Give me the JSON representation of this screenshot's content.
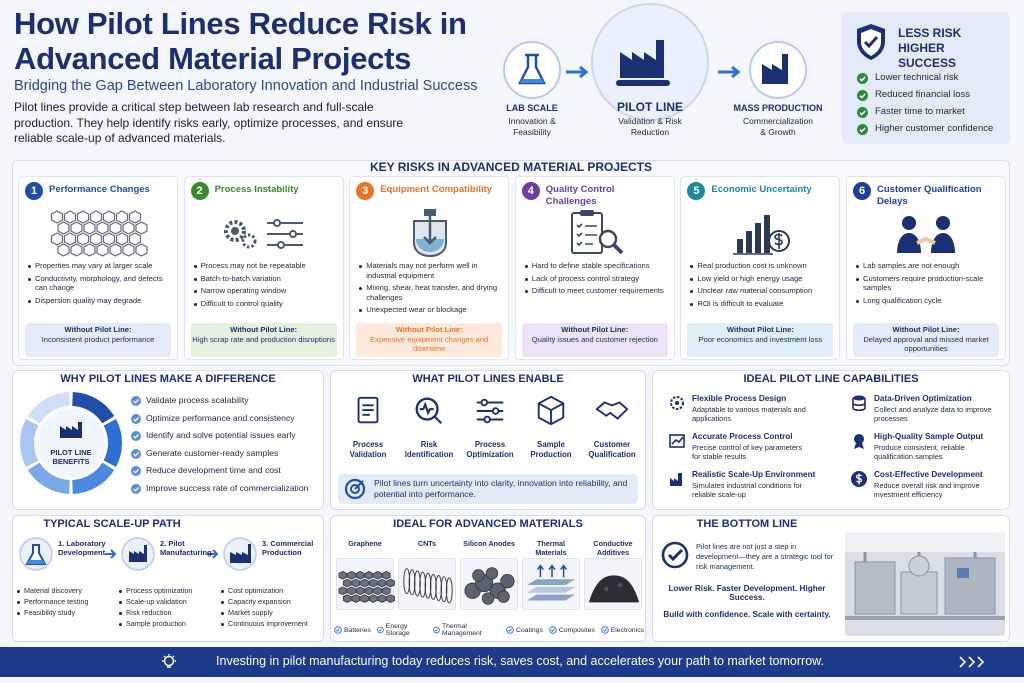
{
  "header": {
    "title": "How Pilot Lines Reduce Risk in Advanced Material Projects",
    "subtitle": "Bridging the Gap Between Laboratory Innovation and Industrial Success",
    "intro": "Pilot lines provide a critical step between lab research and full-scale production. They help identify risks early, optimize processes, and ensure reliable scale-up of advanced materials."
  },
  "flow": [
    {
      "label": "LAB SCALE",
      "sub": "Innovation & Feasibility"
    },
    {
      "label": "PILOT LINE",
      "sub": "Validation & Risk Reduction"
    },
    {
      "label": "MASS PRODUCTION",
      "sub": "Commercialization & Growth"
    }
  ],
  "benefits": {
    "title": "LESS RISK HIGHER SUCCESS",
    "items": [
      "Lower technical risk",
      "Reduced financial loss",
      "Faster time to market",
      "Higher customer confidence"
    ]
  },
  "risks": {
    "title": "KEY RISKS IN ADVANCED MATERIAL PROJECTS",
    "items": [
      {
        "number": "1",
        "title": "Performance Changes",
        "bullets": [
          "Properties may vary at larger scale",
          "Conductivity, morphology, and defects can change",
          "Dispersion quality may degrade"
        ],
        "without_label": "Without Pilot Line:",
        "without_text": "Inconsistent product performance"
      },
      {
        "number": "2",
        "title": "Process Instability",
        "bullets": [
          "Process may not be repeatable",
          "Batch-to-batch variation",
          "Narrow operating window",
          "Difficult to control quality"
        ],
        "without_label": "Without Pilot Line:",
        "without_text": "High scrap rate and production disruptions"
      },
      {
        "number": "3",
        "title": "Equipment Compatibility",
        "bullets": [
          "Materials may not perform well in industrial equipment",
          "Mixing, shear, heat transfer, and drying challenges",
          "Unexpected wear or blockage"
        ],
        "without_label": "Without Pilot Line:",
        "without_text": "Expensive equipment changes and downtime"
      },
      {
        "number": "4",
        "title": "Quality Control Challenges",
        "bullets": [
          "Hard to define stable specifications",
          "Lack of process control strategy",
          "Difficult to meet customer requirements"
        ],
        "without_label": "Without Pilot Line:",
        "without_text": "Quality issues and customer rejection"
      },
      {
        "number": "5",
        "title": "Economic Uncertainty",
        "bullets": [
          "Real production cost is unknown",
          "Low yield or high energy usage",
          "Unclear raw material consumption",
          "ROI is difficult to evaluate"
        ],
        "without_label": "Without Pilot Line:",
        "without_text": "Poor economics and investment loss"
      },
      {
        "number": "6",
        "title": "Customer Qualification Delays",
        "bullets": [
          "Lab samples are not enough",
          "Customers require production-scale samples",
          "Long qualification cycle"
        ],
        "without_label": "Without Pilot Line:",
        "without_text": "Delayed approval and missed market opportunities"
      }
    ]
  },
  "why": {
    "title": "WHY PILOT LINES MAKE A DIFFERENCE",
    "ring_label": "PILOT LINE BENEFITS",
    "items": [
      "Validate process scalability",
      "Optimize performance and consistency",
      "Identify and solve potential issues early",
      "Generate customer-ready samples",
      "Reduce development time and cost",
      "Improve success rate of commercialization"
    ]
  },
  "enable": {
    "title": "WHAT PILOT LINES ENABLE",
    "items": [
      "Process Validation",
      "Risk Identification",
      "Process Optimization",
      "Sample Production",
      "Customer Qualification"
    ],
    "note": "Pilot lines turn uncertainty into clarity, innovation into reliability, and potential into performance."
  },
  "capabilities": {
    "title": "IDEAL PILOT LINE CAPABILITIES",
    "items": [
      {
        "title": "Flexible Process Design",
        "desc": "Adaptable to various materials and applications"
      },
      {
        "title": "Accurate Process Control",
        "desc": "Precise control of key parameters for stable results"
      },
      {
        "title": "Realistic Scale-Up Environment",
        "desc": "Simulates industrial conditions for reliable scale-up"
      },
      {
        "title": "Data-Driven Optimization",
        "desc": "Collect and analyze data to improve processes"
      },
      {
        "title": "High-Quality Sample Output",
        "desc": "Produce consistent, reliable qualification samples"
      },
      {
        "title": "Cost-Effective Development",
        "desc": "Reduce overall risk and improve investment efficiency"
      }
    ]
  },
  "scale_up": {
    "title": "TYPICAL SCALE-UP PATH",
    "steps": [
      {
        "label": "1. Laboratory Development",
        "items": [
          "Material discovery",
          "Performance testing",
          "Feasibility study"
        ]
      },
      {
        "label": "2. Pilot Manufacturing",
        "items": [
          "Process optimization",
          "Scale-up validation",
          "Risk reduction",
          "Sample production"
        ]
      },
      {
        "label": "3. Commercial Production",
        "items": [
          "Cost optimization",
          "Capacity expansion",
          "Market supply",
          "Continuous improvement"
        ]
      }
    ]
  },
  "materials": {
    "title": "IDEAL FOR ADVANCED MATERIALS",
    "items": [
      "Graphene",
      "CNTs",
      "Silicon Anodes",
      "Thermal Materials",
      "Conductive Additives"
    ],
    "applications": [
      "Batteries",
      "Energy Storage",
      "Thermal Management",
      "Coatings",
      "Composites",
      "Electronics"
    ]
  },
  "bottom_line": {
    "title": "THE BOTTOM LINE",
    "statement": "Pilot lines are not just a step in development—they are a strategic tool for risk management.",
    "tagline": "Lower Risk. Faster Development. Higher Success.",
    "closing": "Build with confidence. Scale with certainty."
  },
  "footer": {
    "text": "Investing in pilot manufacturing today reduces risk, saves cost, and accelerates your path to market tomorrow."
  }
}
